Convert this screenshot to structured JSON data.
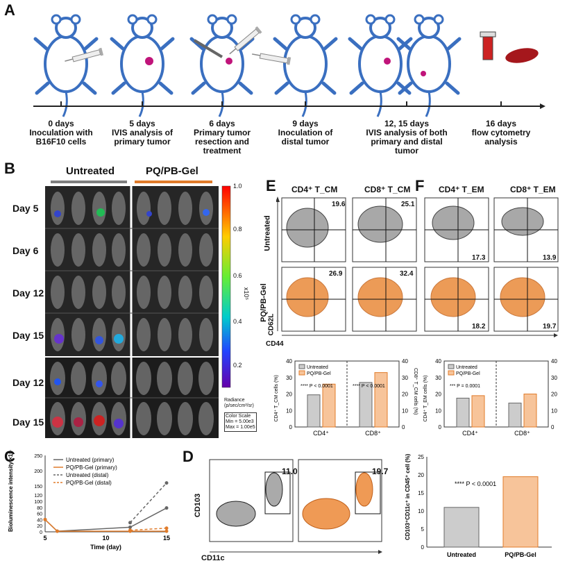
{
  "panels": {
    "A": "A",
    "B": "B",
    "C": "C",
    "D": "D",
    "E": "E",
    "F": "F"
  },
  "timeline": [
    {
      "day": "0 days",
      "desc": "Inoculation with\nB16F10 cells"
    },
    {
      "day": "5 days",
      "desc": "IVIS analysis of\nprimary tumor"
    },
    {
      "day": "6 days",
      "desc": "Primary tumor\nresection and\ntreatment"
    },
    {
      "day": "9 days",
      "desc": "Inoculation of\ndistal tumor"
    },
    {
      "day": "12, 15 days",
      "desc": "IVIS analysis of both\nprimary and distal\ntumor"
    },
    {
      "day": "16 days",
      "desc": "flow cytometry\nanalysis"
    }
  ],
  "panelB": {
    "groups": [
      "Untreated",
      "PQ/PB-Gel"
    ],
    "rows": [
      "Day 5",
      "Day 6",
      "Day 12",
      "Day 15",
      "Day 12",
      "Day 15"
    ],
    "colorbar": {
      "ticks": [
        "1.0",
        "0.8",
        "0.6",
        "0.4",
        "0.2"
      ],
      "exp": "x10⁵",
      "radiance": "Radiance\n(p/sec/cm²/sr)",
      "scale": "Color Scale\nMin = 5.00e3\nMax = 1.00e5"
    },
    "colors": {
      "untreated": "#7f7f7f",
      "treated": "#e07b2a"
    }
  },
  "panelE": {
    "cols": [
      "CD4⁺ T_CM",
      "CD8⁺ T_CM"
    ],
    "rowlabels": [
      "Untreated",
      "PQ/PB-Gel"
    ],
    "numbers": [
      [
        "19.6",
        "25.1"
      ],
      [
        "26.9",
        "32.4"
      ]
    ],
    "ylabel": "CD62L",
    "xlabel": "CD44"
  },
  "panelF": {
    "cols": [
      "CD4⁺ T_EM",
      "CD8⁺ T_EM"
    ],
    "numbers": [
      [
        "17.3",
        "13.9"
      ],
      [
        "18.2",
        "19.7"
      ]
    ]
  },
  "chart_data": [
    {
      "id": "E-bar",
      "type": "bar",
      "categories": [
        "CD4⁺",
        "CD8⁺"
      ],
      "series": [
        {
          "name": "Untreated",
          "values": [
            19.5,
            27
          ]
        },
        {
          "name": "PQ/PB-Gel",
          "values": [
            26,
            33
          ]
        }
      ],
      "ylabel_left": "CD4⁺ T_CM cells (%)",
      "ylabel_right": "CD8⁺ T_CM cells (%)",
      "ylim": [
        0,
        40
      ],
      "yticks": [
        "0",
        "10",
        "20",
        "30",
        "40"
      ],
      "sig": [
        "**** P < 0.0001",
        "**** P < 0.0001"
      ]
    },
    {
      "id": "F-bar",
      "type": "bar",
      "categories": [
        "CD4⁺",
        "CD8⁺"
      ],
      "series": [
        {
          "name": "Untreated",
          "values": [
            17.5,
            14.5
          ]
        },
        {
          "name": "PQ/PB-Gel",
          "values": [
            19,
            20
          ]
        }
      ],
      "ylabel_left": "CD4⁺ T_EM cells (%)",
      "ylabel_right": "CD8⁺ T_EM cells (%)",
      "ylim": [
        0,
        40
      ],
      "yticks": [
        "0",
        "10",
        "20",
        "30",
        "40"
      ],
      "sig": [
        "*** P = 0.0001"
      ]
    },
    {
      "id": "C-line",
      "type": "line",
      "title": "",
      "xlabel": "Time (day)",
      "ylabel": "Bioluminescence intensity ×10⁴ (p/s)",
      "x": [
        5,
        6,
        12,
        15
      ],
      "xticks": [
        "5",
        "10",
        "15"
      ],
      "yticks": [
        "0",
        "20",
        "40",
        "60",
        "80",
        "100",
        "120",
        "150",
        "200",
        "250"
      ],
      "series": [
        {
          "name": "Untreated (primary)",
          "values": [
            40,
            2,
            15,
            78
          ]
        },
        {
          "name": "PQ/PB-Gel (primary)",
          "values": [
            40,
            2,
            2,
            2
          ]
        },
        {
          "name": "Untreated (distal)",
          "values": [
            null,
            null,
            30,
            160
          ]
        },
        {
          "name": "PQ/PB-Gel (distal)",
          "values": [
            null,
            null,
            5,
            12
          ]
        }
      ]
    },
    {
      "id": "D-bar",
      "type": "bar",
      "categories": [
        "Untreated",
        "PQ/PB-Gel"
      ],
      "values": [
        11,
        19.5
      ],
      "ylabel": "CD103⁺CD11c⁺ in CD45⁺ cell (%)",
      "ylim": [
        0,
        25
      ],
      "yticks": [
        "0",
        "5",
        "10",
        "15",
        "20",
        "25"
      ],
      "sig": "**** P < 0.0001"
    }
  ],
  "panelD": {
    "numbers": [
      "11.0",
      "19.7"
    ],
    "ylabel": "CD103",
    "xlabel": "CD11c"
  },
  "legend": {
    "untreated": "Untreated",
    "treated": "PQ/PB-Gel"
  }
}
